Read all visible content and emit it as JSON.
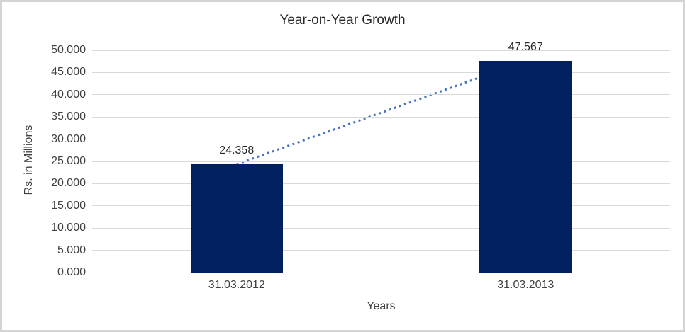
{
  "window": {
    "background": "#ffffff",
    "frame_border_color": "#d4d4d4"
  },
  "chart_data": {
    "type": "bar",
    "title": "Year-on-Year Growth",
    "xlabel": "Years",
    "ylabel": "Rs. in Millions",
    "categories": [
      "31.03.2012",
      "31.03.2013"
    ],
    "series": [
      {
        "name": "Rs. in Millions",
        "values": [
          24.358,
          47.567
        ]
      }
    ],
    "value_labels": [
      "24.358",
      "47.567"
    ],
    "ylim": [
      0,
      50
    ],
    "ytick_step": 5,
    "ytick_labels": [
      "0.000",
      "5.000",
      "10.000",
      "15.000",
      "20.000",
      "25.000",
      "30.000",
      "35.000",
      "40.000",
      "45.000",
      "50.000"
    ],
    "grid": true,
    "legend": "none",
    "colors": {
      "bar": "#002060",
      "trendline": "#4472c4",
      "gridline": "#d9d9d9",
      "axis_line": "#bfbfbf",
      "tick_text": "#404040",
      "title_text": "#262626"
    },
    "trendline": {
      "type": "linear",
      "style": "dotted",
      "from_point": [
        0,
        24.358
      ],
      "to_point": [
        1,
        47.567
      ]
    }
  }
}
